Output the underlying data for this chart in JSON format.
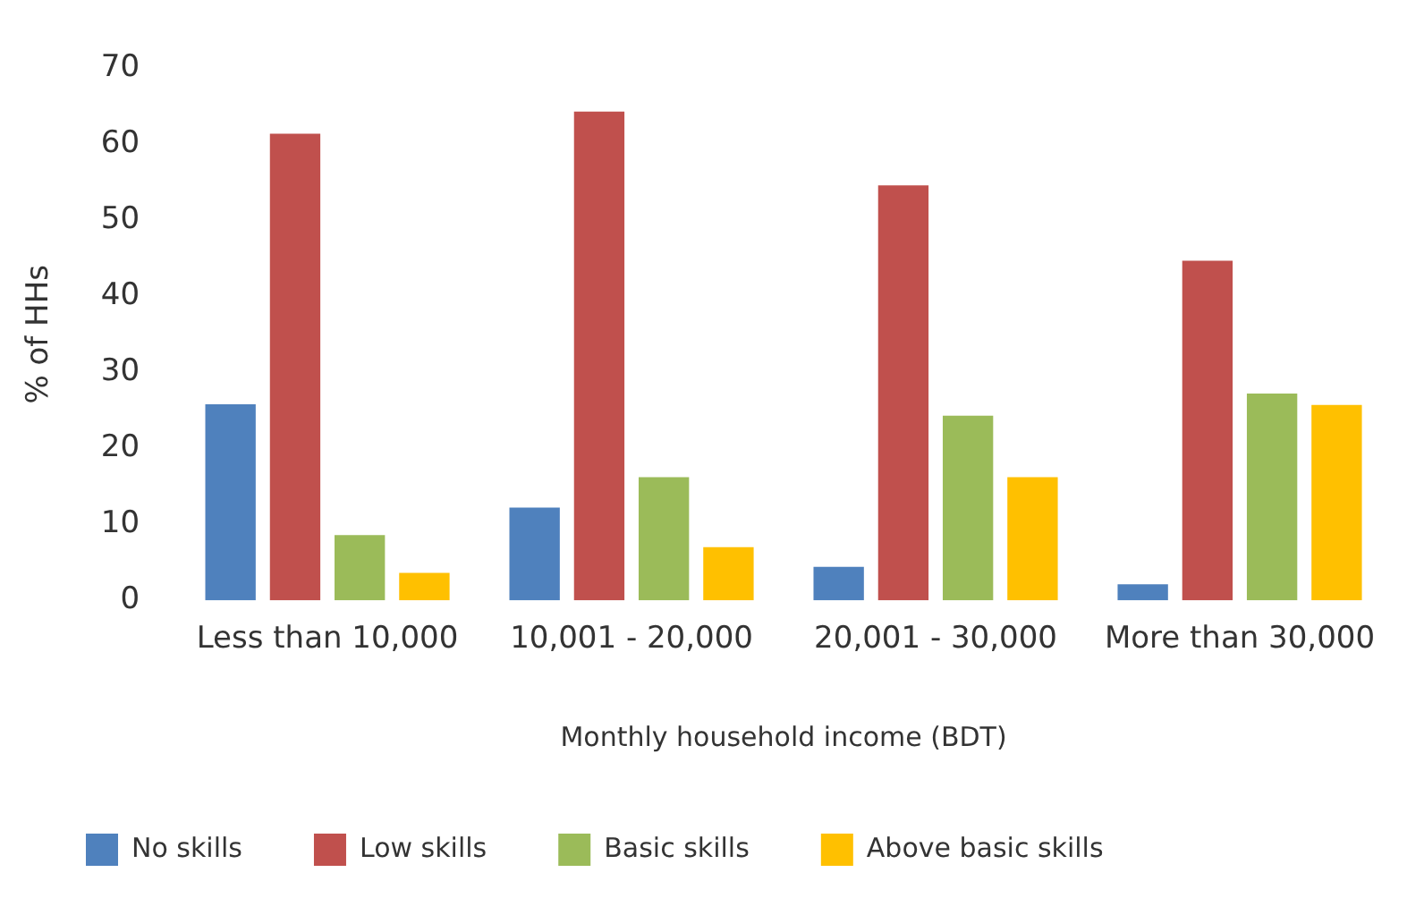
{
  "chart_data": {
    "type": "bar",
    "xlabel": "Monthly household income (BDT)",
    "ylabel": "% of HHs",
    "categories": [
      "Less than 10,000",
      "10,001 - 20,000",
      "20,001 - 30,000",
      "More than 30,000"
    ],
    "series": [
      {
        "name": "No skills",
        "color": "#4f81bd",
        "values": [
          25.8,
          12.2,
          4.4,
          2.1
        ]
      },
      {
        "name": "Low skills",
        "color": "#c0504d",
        "values": [
          61.4,
          64.3,
          54.6,
          44.7
        ]
      },
      {
        "name": "Basic skills",
        "color": "#9bbb59",
        "values": [
          8.6,
          16.2,
          24.3,
          27.2
        ]
      },
      {
        "name": "Above basic skills",
        "color": "#ffc000",
        "values": [
          3.6,
          7.0,
          16.2,
          25.7
        ]
      }
    ],
    "ylim": [
      0,
      70
    ],
    "yticks": [
      0,
      10,
      20,
      30,
      40,
      50,
      60,
      70
    ],
    "grid": false,
    "legend": "bottom"
  }
}
